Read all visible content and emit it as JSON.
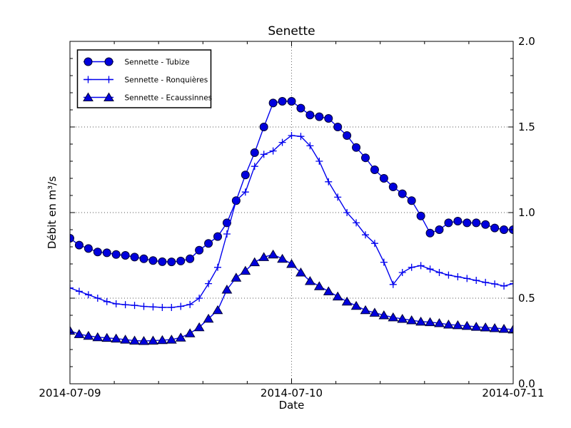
{
  "figure": {
    "background": "#ffffff",
    "frame_color": "#000000",
    "grid_color": "#555555"
  },
  "chart_data": {
    "type": "line",
    "title": "Senette",
    "xlabel": "Date",
    "ylabel": "Débit en m³/s",
    "x_unit": "hours since 2014-07-09 00:00",
    "x_range": [
      0,
      48
    ],
    "y_range": [
      0.0,
      2.0
    ],
    "x_major_ticks": [
      0,
      24,
      48
    ],
    "x_major_labels": [
      "2014-07-09",
      "2014-07-10",
      "2014-07-11"
    ],
    "x_minor_step": 4.8,
    "y_major_ticks": [
      0.0,
      0.5,
      1.0,
      1.5,
      2.0
    ],
    "y_major_labels": [
      "0.0",
      "0.5",
      "1.0",
      "1.5",
      "2.0"
    ],
    "y_tick_side": "right",
    "y_minor_step": 0.1,
    "grid": {
      "vertical_at_hours": [
        24
      ],
      "horizontal_at": [
        0.5,
        1.0,
        1.5
      ],
      "style": "dotted"
    },
    "line_color": "#0000ee",
    "marker_face_color": "#0000dd",
    "marker_edge_color": "#000033",
    "legend_position": "upper-left",
    "series": [
      {
        "name": "Sennette - Tubize",
        "marker": "circle",
        "values": [
          0.85,
          0.81,
          0.79,
          0.77,
          0.765,
          0.755,
          0.75,
          0.74,
          0.73,
          0.72,
          0.713,
          0.712,
          0.717,
          0.73,
          0.78,
          0.82,
          0.86,
          0.94,
          1.07,
          1.22,
          1.35,
          1.5,
          1.64,
          1.65,
          1.65,
          1.61,
          1.57,
          1.56,
          1.55,
          1.5,
          1.45,
          1.38,
          1.32,
          1.25,
          1.2,
          1.15,
          1.11,
          1.07,
          0.98,
          0.88,
          0.9,
          0.94,
          0.95,
          0.94,
          0.94,
          0.93,
          0.91,
          0.9,
          0.9
        ]
      },
      {
        "name": "Sennette - Ronquières",
        "marker": "plus",
        "values": [
          0.56,
          0.54,
          0.52,
          0.5,
          0.48,
          0.467,
          0.462,
          0.458,
          0.452,
          0.449,
          0.446,
          0.446,
          0.452,
          0.463,
          0.5,
          0.585,
          0.68,
          0.875,
          1.07,
          1.12,
          1.27,
          1.34,
          1.36,
          1.41,
          1.45,
          1.445,
          1.39,
          1.3,
          1.18,
          1.09,
          1.0,
          0.94,
          0.87,
          0.82,
          0.71,
          0.58,
          0.65,
          0.68,
          0.69,
          0.67,
          0.65,
          0.635,
          0.625,
          0.615,
          0.604,
          0.592,
          0.583,
          0.571,
          0.585
        ]
      },
      {
        "name": "Sennette - Ecaussinnes",
        "marker": "triangle",
        "values": [
          0.31,
          0.29,
          0.28,
          0.272,
          0.268,
          0.264,
          0.258,
          0.252,
          0.25,
          0.252,
          0.255,
          0.258,
          0.27,
          0.295,
          0.33,
          0.38,
          0.43,
          0.55,
          0.62,
          0.66,
          0.71,
          0.74,
          0.755,
          0.73,
          0.7,
          0.65,
          0.6,
          0.57,
          0.54,
          0.51,
          0.48,
          0.455,
          0.43,
          0.415,
          0.4,
          0.388,
          0.379,
          0.371,
          0.363,
          0.36,
          0.354,
          0.346,
          0.342,
          0.338,
          0.333,
          0.329,
          0.325,
          0.321,
          0.317
        ]
      }
    ]
  }
}
